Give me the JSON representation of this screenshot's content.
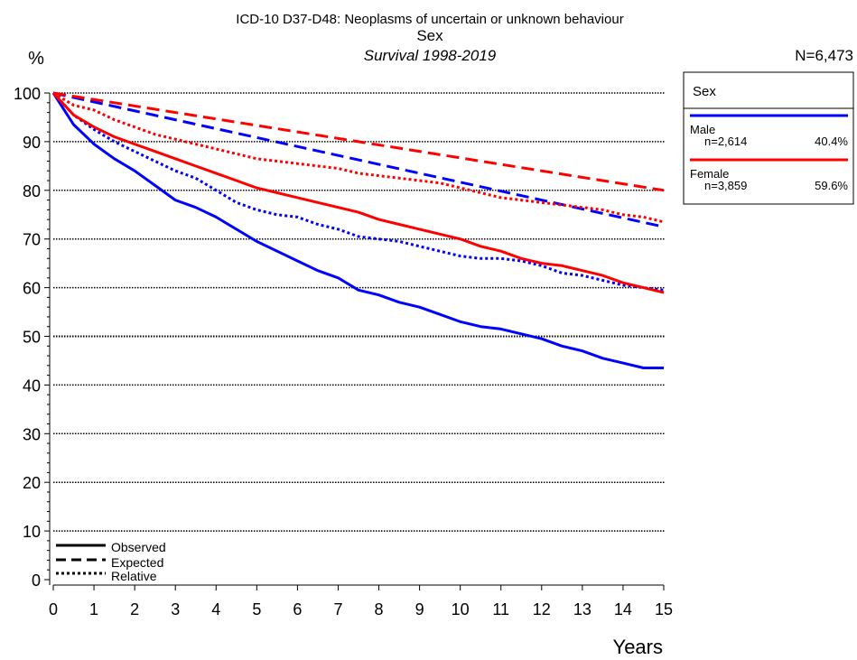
{
  "header": {
    "title": "ICD-10 D37-D48: Neoplasms of uncertain or unknown behaviour",
    "subtitle": "Sex",
    "survival": "Survival 1998-2019",
    "n_total": "N=6,473"
  },
  "legend": {
    "title": "Sex",
    "entries": [
      {
        "name": "Male",
        "n": "n=2,614",
        "pct": "40.4%",
        "color": "#0000ff"
      },
      {
        "name": "Female",
        "n": "n=3,859",
        "pct": "59.6%",
        "color": "#ff0000"
      }
    ],
    "line_types": [
      "Observed",
      "Expected",
      "Relative"
    ]
  },
  "chart_data": {
    "type": "line",
    "title": "ICD-10 D37-D48: Neoplasms of uncertain or unknown behaviour",
    "subtitle": "Sex",
    "xlabel": "Years",
    "ylabel": "%",
    "xlim": [
      0,
      15
    ],
    "ylim": [
      0,
      100
    ],
    "x_ticks": [
      0,
      1,
      2,
      3,
      4,
      5,
      6,
      7,
      8,
      9,
      10,
      11,
      12,
      13,
      14,
      15
    ],
    "y_ticks": [
      0,
      10,
      20,
      30,
      40,
      50,
      60,
      70,
      80,
      90,
      100
    ],
    "grid": "horizontal dotted",
    "legend_position": "right",
    "series": [
      {
        "name": "Male",
        "type": "Observed",
        "color": "#0000ff",
        "x": [
          0,
          0.5,
          1,
          1.5,
          2,
          2.5,
          3,
          3.5,
          4,
          4.5,
          5,
          5.5,
          6,
          6.5,
          7,
          7.5,
          8,
          8.5,
          9,
          9.5,
          10,
          10.5,
          11,
          11.5,
          12,
          12.5,
          13,
          13.5,
          14,
          14.5,
          15
        ],
        "y": [
          100,
          93.5,
          89.5,
          86.5,
          84,
          81,
          78,
          76.5,
          74.5,
          72,
          69.5,
          67.5,
          65.5,
          63.5,
          62,
          59.5,
          58.5,
          57,
          56,
          54.5,
          53,
          52,
          51.5,
          50.5,
          49.5,
          48,
          47,
          45.5,
          44.5,
          43.5,
          43.5
        ]
      },
      {
        "name": "Male",
        "type": "Expected",
        "color": "#0000ff",
        "x": [
          0,
          15
        ],
        "y": [
          100,
          72.5
        ]
      },
      {
        "name": "Male",
        "type": "Relative",
        "color": "#0000ff",
        "x": [
          0,
          0.5,
          1,
          1.5,
          2,
          2.5,
          3,
          3.5,
          4,
          4.5,
          5,
          5.5,
          6,
          6.5,
          7,
          7.5,
          8,
          8.5,
          9,
          9.5,
          10,
          10.5,
          11,
          11.5,
          12,
          12.5,
          13,
          13.5,
          14,
          14.5,
          15
        ],
        "y": [
          100,
          95.5,
          92.5,
          90,
          88,
          86,
          84,
          82.5,
          80,
          77.5,
          76,
          75,
          74.5,
          73,
          72,
          70.5,
          70,
          69.5,
          68.5,
          67.5,
          66.5,
          66,
          66,
          65.5,
          64.5,
          63,
          62.5,
          61.5,
          60.5,
          60,
          59.5
        ]
      },
      {
        "name": "Female",
        "type": "Observed",
        "color": "#ff0000",
        "x": [
          0,
          0.5,
          1,
          1.5,
          2,
          2.5,
          3,
          3.5,
          4,
          4.5,
          5,
          5.5,
          6,
          6.5,
          7,
          7.5,
          8,
          8.5,
          9,
          9.5,
          10,
          10.5,
          11,
          11.5,
          12,
          12.5,
          13,
          13.5,
          14,
          14.5,
          15
        ],
        "y": [
          100,
          95.5,
          93,
          91,
          89.5,
          88,
          86.5,
          85,
          83.5,
          82,
          80.5,
          79.5,
          78.5,
          77.5,
          76.5,
          75.5,
          74,
          73,
          72,
          71,
          70,
          68.5,
          67.5,
          66,
          65,
          64.5,
          63.5,
          62.5,
          61,
          60,
          59
        ]
      },
      {
        "name": "Female",
        "type": "Expected",
        "color": "#ff0000",
        "x": [
          0,
          15
        ],
        "y": [
          100,
          80
        ]
      },
      {
        "name": "Female",
        "type": "Relative",
        "color": "#ff0000",
        "x": [
          0,
          0.5,
          1,
          1.5,
          2,
          2.5,
          3,
          3.5,
          4,
          4.5,
          5,
          5.5,
          6,
          6.5,
          7,
          7.5,
          8,
          8.5,
          9,
          9.5,
          10,
          10.5,
          11,
          11.5,
          12,
          12.5,
          13,
          13.5,
          14,
          14.5,
          15
        ],
        "y": [
          100,
          97.5,
          96.5,
          94.5,
          93,
          91.5,
          90.5,
          89.5,
          88.5,
          87.5,
          86.5,
          86,
          85.5,
          85,
          84.5,
          83.5,
          83,
          82.5,
          82,
          81.5,
          80.5,
          79.5,
          78.5,
          78,
          77.5,
          77,
          76.5,
          76,
          75,
          74.5,
          73.5
        ]
      }
    ]
  }
}
